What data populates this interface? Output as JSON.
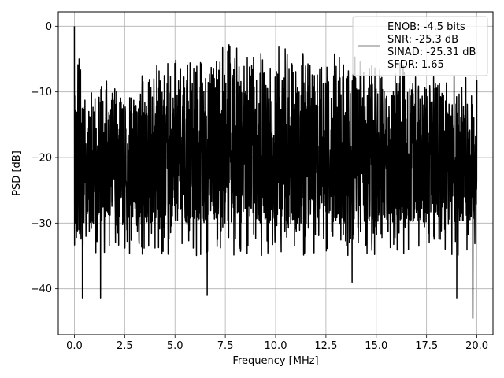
{
  "chart_data": {
    "type": "line",
    "title": "",
    "xlabel": "Frequency [MHz]",
    "ylabel": "PSD [dB]",
    "xlim": [
      -0.8,
      20.8
    ],
    "ylim": [
      -47,
      2.2
    ],
    "x_ticks": [
      0.0,
      2.5,
      5.0,
      7.5,
      10.0,
      12.5,
      15.0,
      17.5,
      20.0
    ],
    "x_tick_labels": [
      "0.0",
      "2.5",
      "5.0",
      "7.5",
      "10.0",
      "12.5",
      "15.0",
      "17.5",
      "20.0"
    ],
    "y_ticks": [
      0,
      -10,
      -20,
      -30,
      -40
    ],
    "y_tick_labels": [
      "0",
      "−10",
      "−20",
      "−30",
      "−40"
    ],
    "grid": true,
    "legend_position": "top-right",
    "line_color": "#000000",
    "series": [
      {
        "name": "ENOB: -4.5 bits",
        "legend_lines": [
          "ENOB: -4.5 bits",
          "SNR: -25.3 dB",
          "SINAD: -25.31 dB",
          "SFDR: 1.65"
        ],
        "x_range": [
          0.0,
          20.0
        ],
        "peak": {
          "x": 0.0,
          "y": 0.0
        },
        "notable_minima": [
          {
            "x": 0.4,
            "y": -41.5
          },
          {
            "x": 1.3,
            "y": -41.5
          },
          {
            "x": 6.6,
            "y": -41.0
          },
          {
            "x": 13.8,
            "y": -39.0
          },
          {
            "x": 19.0,
            "y": -41.5
          },
          {
            "x": 19.8,
            "y": -44.5
          }
        ],
        "envelope": [
          {
            "x": 0.0,
            "top": -3.0,
            "bottom": -33.5
          },
          {
            "x": 0.5,
            "top": -10.0,
            "bottom": -30.0
          },
          {
            "x": 1.0,
            "top": -10.5,
            "bottom": -30.0
          },
          {
            "x": 2.5,
            "top": -10.0,
            "bottom": -30.0
          },
          {
            "x": 4.0,
            "top": -8.0,
            "bottom": -30.0
          },
          {
            "x": 5.5,
            "top": -6.0,
            "bottom": -30.0
          },
          {
            "x": 7.5,
            "top": -4.0,
            "bottom": -30.0
          },
          {
            "x": 10.0,
            "top": -5.0,
            "bottom": -30.0
          },
          {
            "x": 12.5,
            "top": -6.0,
            "bottom": -30.0
          },
          {
            "x": 15.0,
            "top": -7.0,
            "bottom": -30.0
          },
          {
            "x": 17.5,
            "top": -8.0,
            "bottom": -30.0
          },
          {
            "x": 20.0,
            "top": -10.0,
            "bottom": -30.0
          }
        ]
      }
    ]
  }
}
